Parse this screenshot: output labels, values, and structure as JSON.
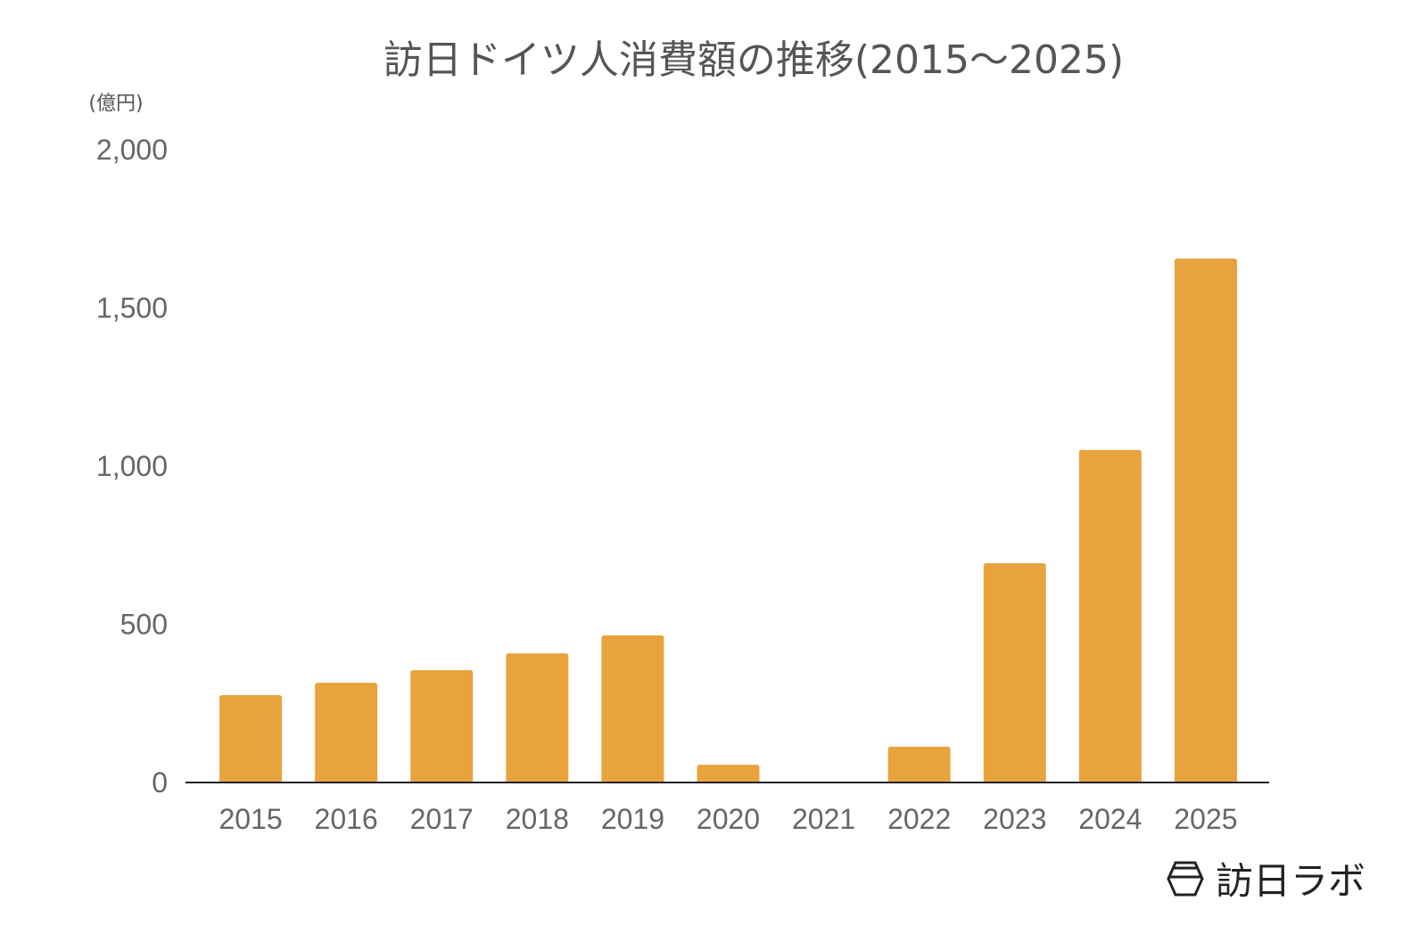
{
  "chart_data": {
    "type": "bar",
    "title": "訪日ドイツ人消費額の推移(2015〜2025)",
    "ylabel": "(億円)",
    "xlabel": "",
    "categories": [
      "2015",
      "2016",
      "2017",
      "2018",
      "2019",
      "2020",
      "2021",
      "2022",
      "2023",
      "2024",
      "2025"
    ],
    "values": [
      276,
      315,
      355,
      408,
      465,
      56,
      0,
      113,
      693,
      1051,
      1656
    ],
    "ylim": [
      0,
      2000
    ],
    "yticks": [
      0,
      500,
      1000,
      1500,
      2000
    ],
    "ytick_labels": [
      "0",
      "500",
      "1,000",
      "1,500",
      "2,000"
    ],
    "grid": false,
    "bar_color": "#E8A33D"
  },
  "logo": {
    "text": "訪日ラボ",
    "icon": "hexagon-logo-icon"
  }
}
